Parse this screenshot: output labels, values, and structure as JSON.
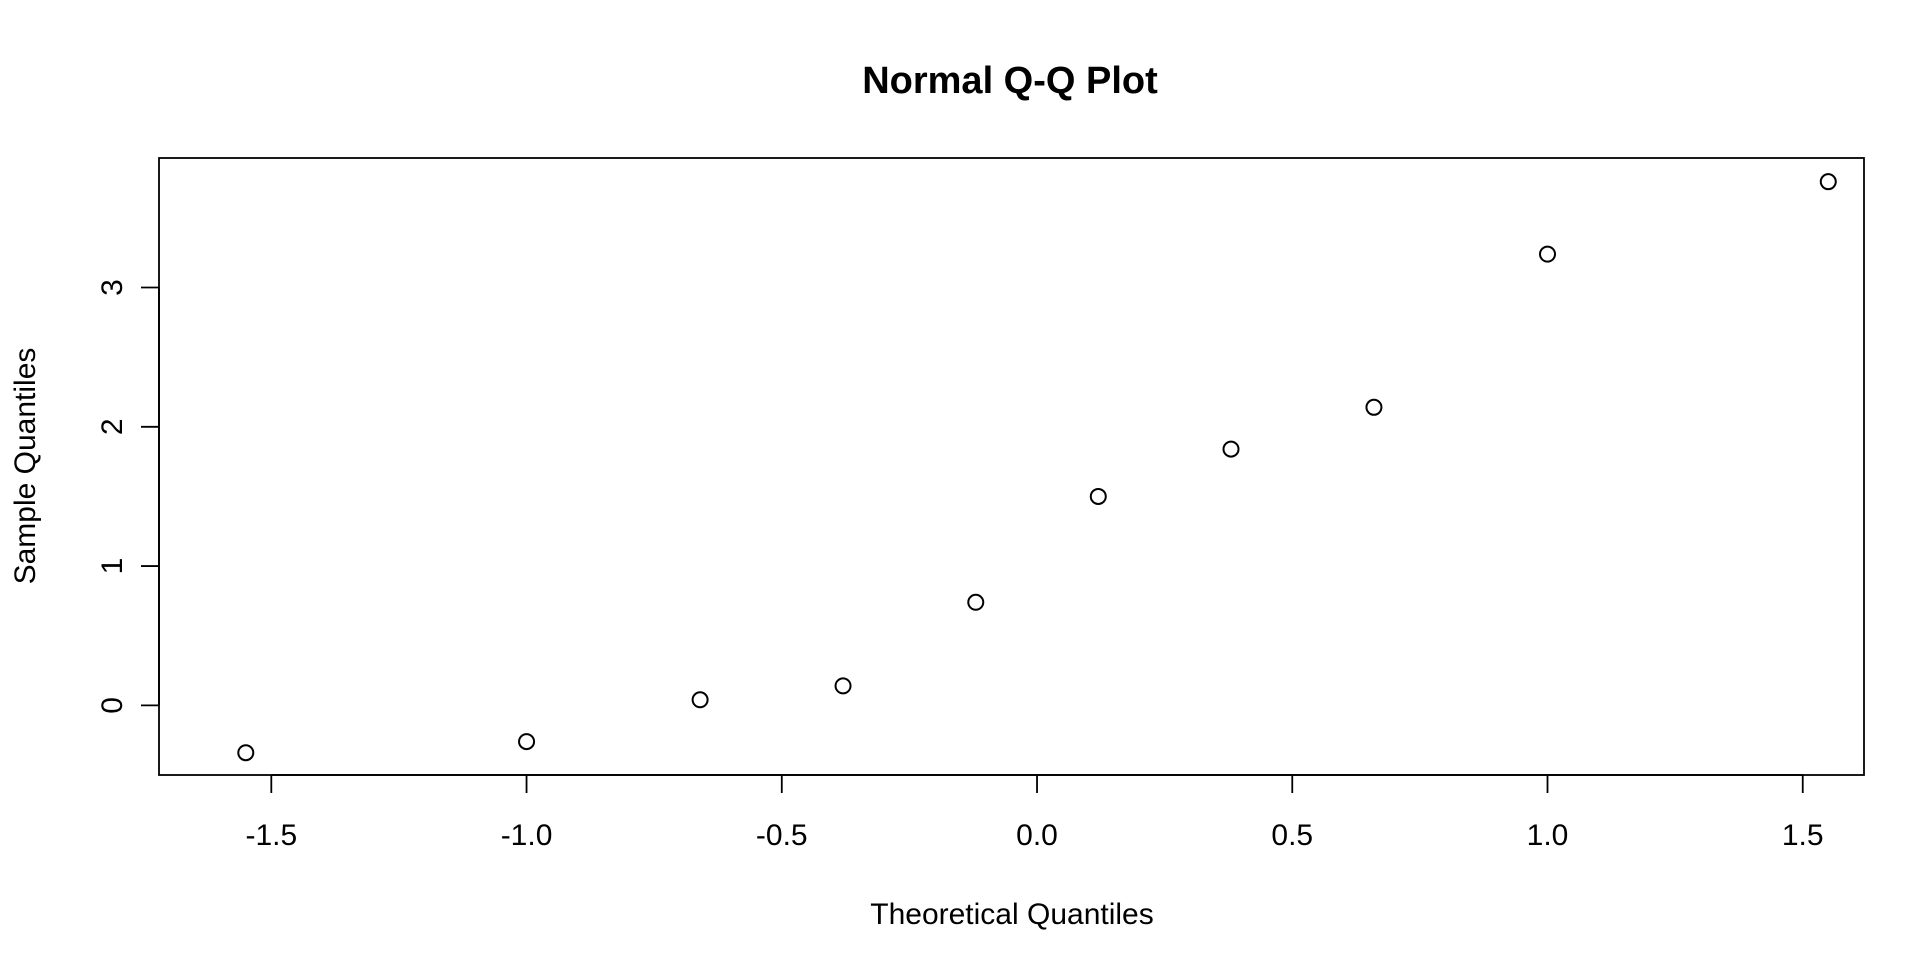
{
  "chart_data": {
    "type": "scatter",
    "title": "Normal Q-Q Plot",
    "xlabel": "Theoretical Quantiles",
    "ylabel": "Sample Quantiles",
    "xlim": [
      -1.72,
      1.62
    ],
    "ylim": [
      -0.5,
      3.93
    ],
    "x_ticks": [
      -1.5,
      -1.0,
      -0.5,
      0.0,
      0.5,
      1.0,
      1.5
    ],
    "x_tick_labels": [
      "-1.5",
      "-1.0",
      "-0.5",
      "0.0",
      "0.5",
      "1.0",
      "1.5"
    ],
    "y_ticks": [
      0,
      1,
      2,
      3
    ],
    "y_tick_labels": [
      "0",
      "1",
      "2",
      "3"
    ],
    "grid": false,
    "series": [
      {
        "points": [
          {
            "x": -1.55,
            "y": -0.34
          },
          {
            "x": -1.0,
            "y": -0.26
          },
          {
            "x": -0.66,
            "y": 0.04
          },
          {
            "x": -0.38,
            "y": 0.14
          },
          {
            "x": -0.12,
            "y": 0.74
          },
          {
            "x": 0.12,
            "y": 1.5
          },
          {
            "x": 0.38,
            "y": 1.84
          },
          {
            "x": 0.66,
            "y": 2.14
          },
          {
            "x": 1.0,
            "y": 3.24
          },
          {
            "x": 1.55,
            "y": 3.76
          }
        ]
      }
    ]
  }
}
